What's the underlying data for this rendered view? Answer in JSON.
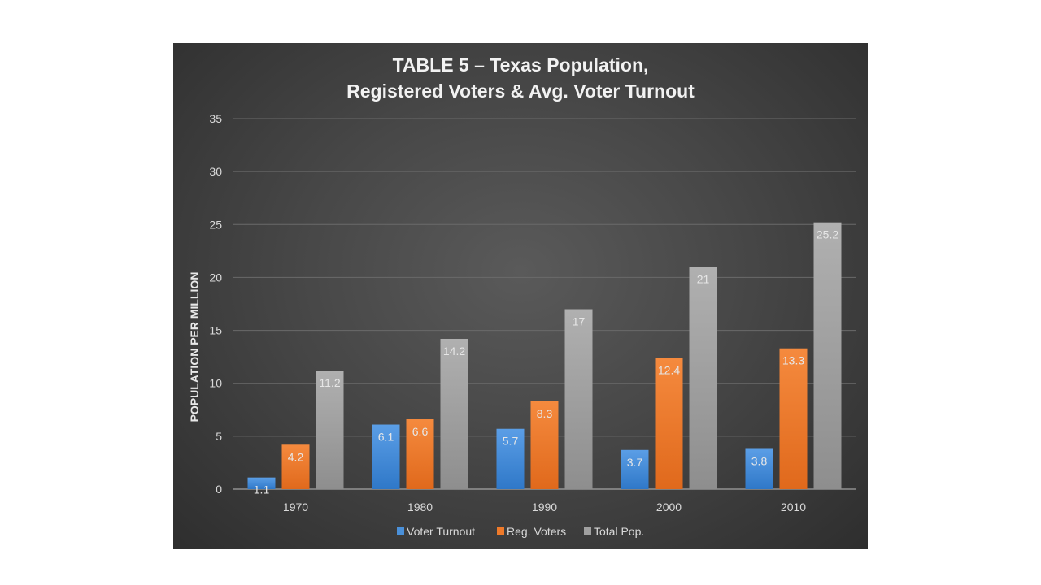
{
  "chart_data": {
    "type": "bar",
    "title_lines": [
      "TABLE 5 – Texas Population,",
      "Registered Voters & Avg. Voter Turnout"
    ],
    "xlabel": "",
    "ylabel": "POPULATION PER MILLION",
    "ylim": [
      0,
      35
    ],
    "yticks": [
      "0",
      "5",
      "10",
      "15",
      "20",
      "25",
      "30",
      "35"
    ],
    "grid": true,
    "legend_position": "bottom",
    "categories": [
      "1970",
      "1980",
      "1990",
      "2000",
      "2010"
    ],
    "series": [
      {
        "name": "Voter Turnout",
        "color": "#4a90d9",
        "values": [
          1.1,
          6.1,
          5.7,
          3.7,
          3.8
        ],
        "labels": [
          "1.1",
          "6.1",
          "5.7",
          "3.7",
          "3.8"
        ]
      },
      {
        "name": "Reg. Voters",
        "color": "#ef7a2a",
        "values": [
          4.2,
          6.6,
          8.3,
          12.4,
          13.3
        ],
        "labels": [
          "4.2",
          "6.6",
          "8.3",
          "12.4",
          "13.3"
        ]
      },
      {
        "name": "Total Pop.",
        "color": "#a0a0a0",
        "values": [
          11.2,
          14.2,
          17,
          21,
          25.2
        ],
        "labels": [
          "11.2",
          "14.2",
          "17",
          "21",
          "25.2"
        ]
      }
    ]
  }
}
